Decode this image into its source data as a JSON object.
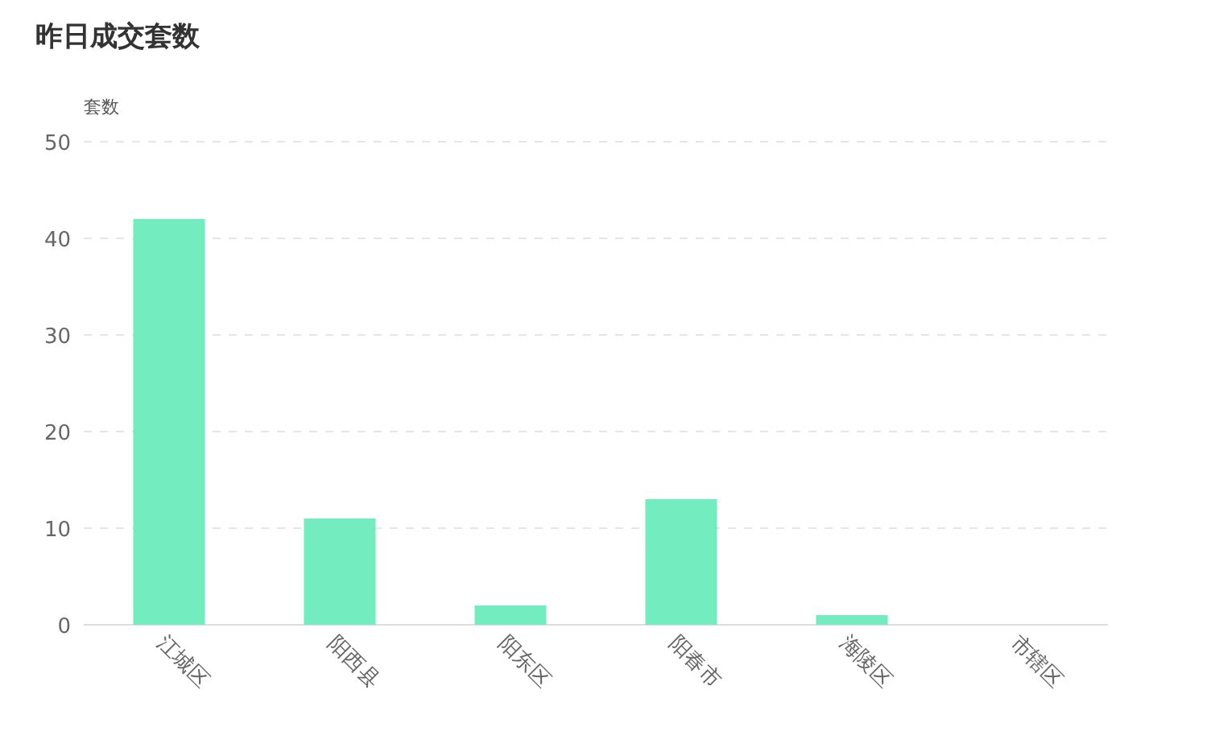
{
  "chart_data": {
    "type": "bar",
    "title": "昨日成交套数",
    "ylabel": "套数",
    "categories": [
      "江城区",
      "阳西县",
      "阳东区",
      "阳春市",
      "海陵区",
      "市辖区"
    ],
    "values": [
      42,
      11,
      2,
      13,
      1,
      0
    ],
    "color": "#73ecbf",
    "ylim": [
      0,
      50
    ],
    "yticks": [
      0,
      10,
      20,
      30,
      40,
      50
    ],
    "grid": "y"
  }
}
